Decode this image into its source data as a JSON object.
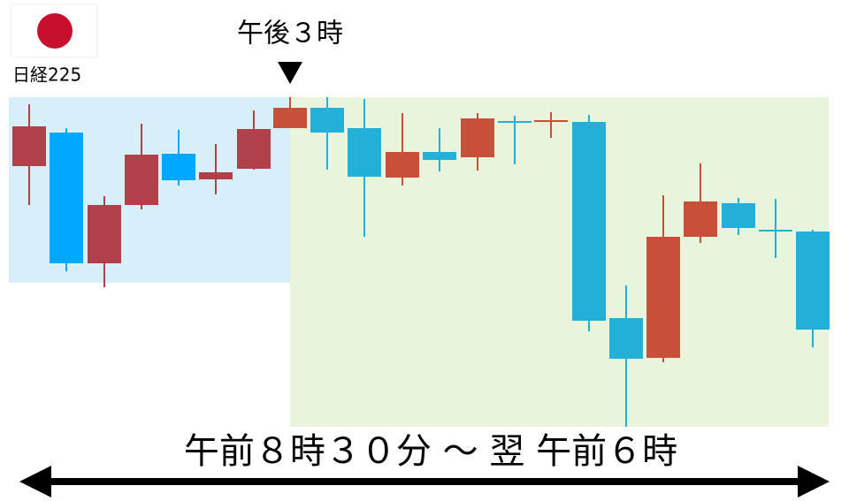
{
  "flag_label": "日経225",
  "marker_label": "午後３時",
  "session_label": "午前８時３０分 ～ 翌 午前６時"
}
